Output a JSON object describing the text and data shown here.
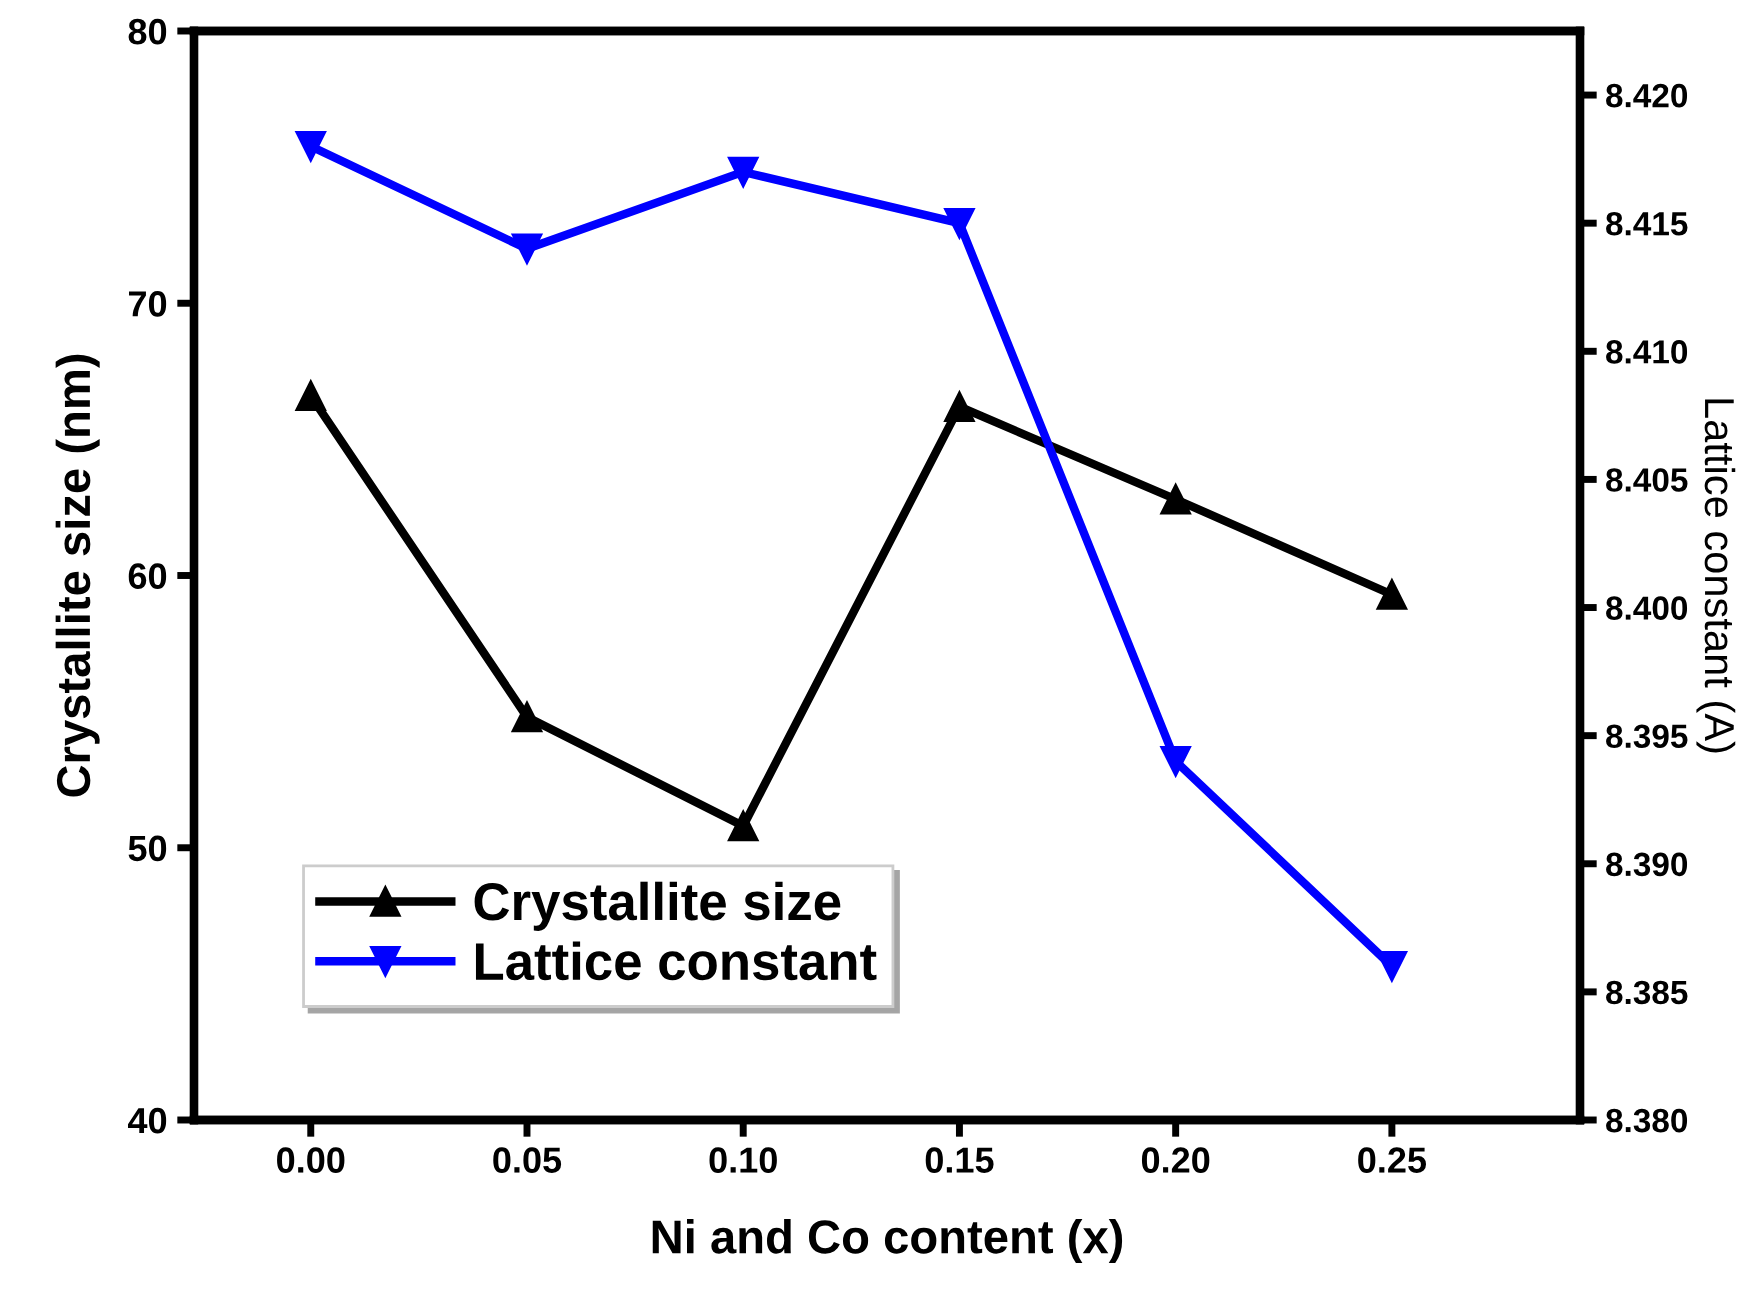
{
  "chart_data": {
    "type": "line",
    "xlabel": "Ni and Co content (x)",
    "ylabel": "Crystallite size (nm)",
    "y2label": "Lattice constant (A)",
    "x": [
      0.0,
      0.05,
      0.1,
      0.15,
      0.2,
      0.25
    ],
    "series": [
      {
        "name": "Crystallite size",
        "color": "#000000",
        "marker": "triangle",
        "values": [
          66.6,
          54.8,
          50.8,
          66.2,
          62.8,
          59.3
        ]
      },
      {
        "name": "Lattice constant",
        "color": "#0000ff",
        "marker": "triangle_down",
        "axis": "y2",
        "values": [
          8.418,
          8.414,
          8.417,
          8.415,
          8.394,
          8.386
        ]
      }
    ],
    "xlim": [
      -0.027,
      0.2935
    ],
    "xticks": [
      {
        "value": 0.0,
        "label": "0.00"
      },
      {
        "value": 0.05,
        "label": "0.05"
      },
      {
        "value": 0.1,
        "label": "0.10"
      },
      {
        "value": 0.15,
        "label": "0.15"
      },
      {
        "value": 0.2,
        "label": "0.20"
      },
      {
        "value": 0.25,
        "label": "0.25"
      }
    ],
    "ylim": [
      40,
      80
    ],
    "yticks": [
      40,
      50,
      60,
      70,
      80
    ],
    "y2lim": [
      8.38,
      8.4225
    ],
    "y2ticks": [
      {
        "value": 8.38,
        "label": "8.380"
      },
      {
        "value": 8.385,
        "label": "8.385"
      },
      {
        "value": 8.39,
        "label": "8.390"
      },
      {
        "value": 8.395,
        "label": "8.395"
      },
      {
        "value": 8.4,
        "label": "8.400"
      },
      {
        "value": 8.405,
        "label": "8.405"
      },
      {
        "value": 8.41,
        "label": "8.410"
      },
      {
        "value": 8.415,
        "label": "8.415"
      },
      {
        "value": 8.42,
        "label": "8.420"
      }
    ],
    "grid": false,
    "legend": "bottom left",
    "line_style": "solid"
  }
}
